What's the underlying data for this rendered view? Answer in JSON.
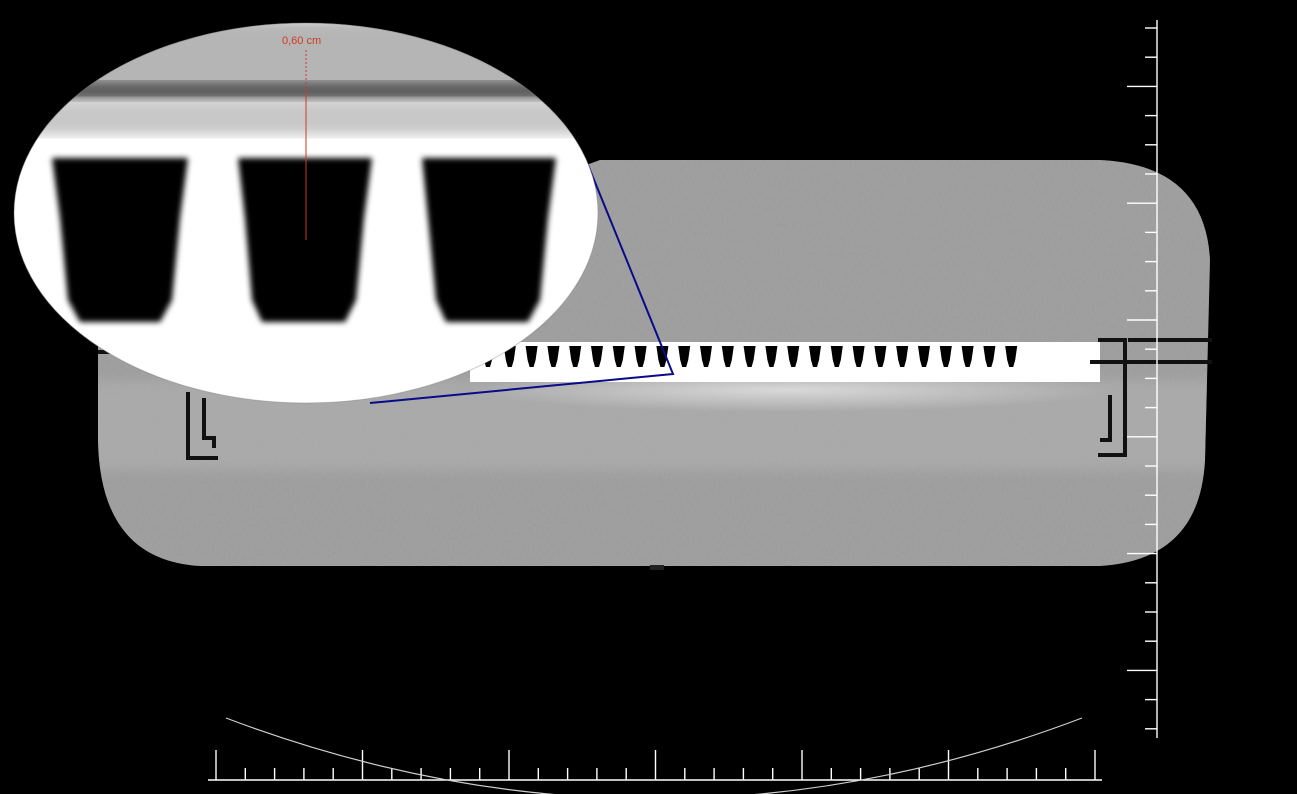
{
  "viewer": {
    "background": "#000000",
    "scale_color": "#ffffff",
    "zoom_outline_color": "#0a0a8a",
    "measurement_color": "#d03a22"
  },
  "measurement": {
    "label": "0,60 cm"
  },
  "scales": {
    "vertical_major_every": 4,
    "horizontal_major_every": 5
  }
}
